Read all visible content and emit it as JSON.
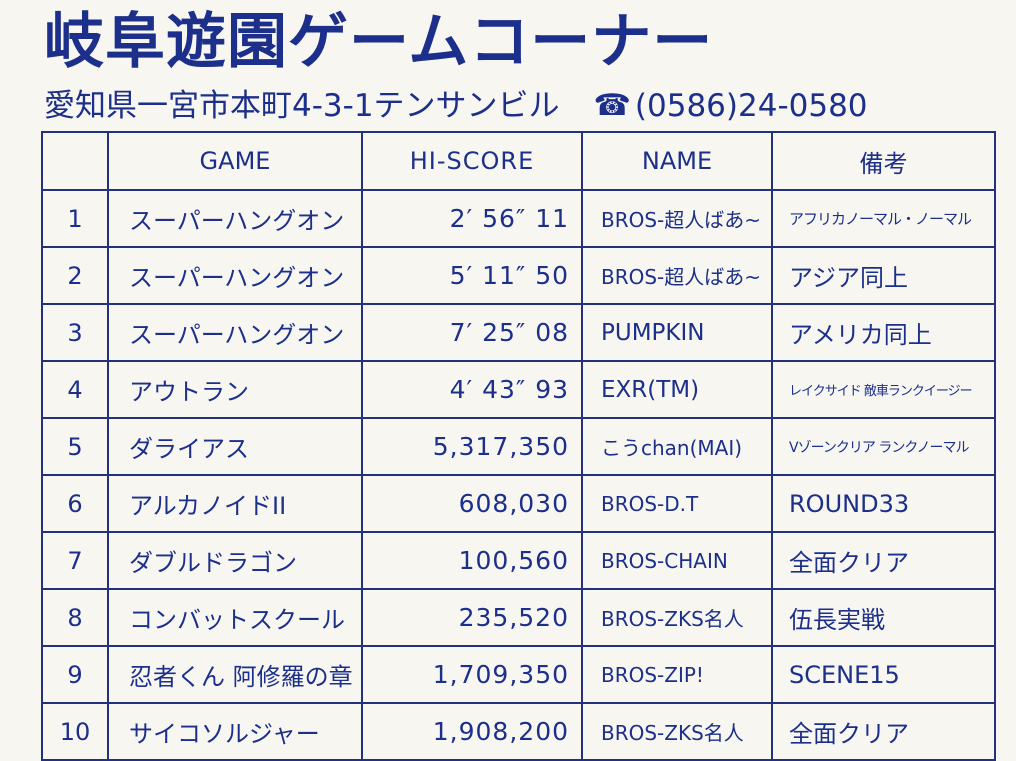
{
  "header": {
    "title": "岐阜遊園ゲームコーナー",
    "address": "愛知県一宮市本町4-3-1テンサンビル",
    "phone_icon": "telephone-icon",
    "phone": "(0586)24-0580"
  },
  "table": {
    "columns": [
      "",
      "GAME",
      "HI-SCORE",
      "NAME",
      "備考"
    ],
    "rows": [
      {
        "rank": "1",
        "game": "スーパーハングオン",
        "score": "2′ 56″ 11",
        "name": "BROS-超人ばあ~",
        "note": "アフリカノーマル・ノーマル"
      },
      {
        "rank": "2",
        "game": "スーパーハングオン",
        "score": "5′ 11″ 50",
        "name": "BROS-超人ばあ~",
        "note": "アジア同上"
      },
      {
        "rank": "3",
        "game": "スーパーハングオン",
        "score": "7′ 25″ 08",
        "name": "PUMPKIN",
        "note": "アメリカ同上"
      },
      {
        "rank": "4",
        "game": "アウトラン",
        "score": "4′ 43″ 93",
        "name": "EXR(TM)",
        "note": "レイクサイド 敵車ランクイージー"
      },
      {
        "rank": "5",
        "game": "ダライアス",
        "score": "5,317,350",
        "name": "こうchan(MAI)",
        "note": "Vゾーンクリア ランクノーマル"
      },
      {
        "rank": "6",
        "game": "アルカノイドII",
        "score": "608,030",
        "name": "BROS-D.T",
        "note": "ROUND33"
      },
      {
        "rank": "7",
        "game": "ダブルドラゴン",
        "score": "100,560",
        "name": "BROS-CHAIN",
        "note": "全面クリア"
      },
      {
        "rank": "8",
        "game": "コンバットスクール",
        "score": "235,520",
        "name": "BROS-ZKS名人",
        "note": "伍長実戦"
      },
      {
        "rank": "9",
        "game": "忍者くん 阿修羅の章",
        "score": "1,709,350",
        "name": "BROS-ZIP!",
        "note": "SCENE15"
      },
      {
        "rank": "10",
        "game": "サイコソルジャー",
        "score": "1,908,200",
        "name": "BROS-ZKS名人",
        "note": "全面クリア"
      }
    ]
  }
}
